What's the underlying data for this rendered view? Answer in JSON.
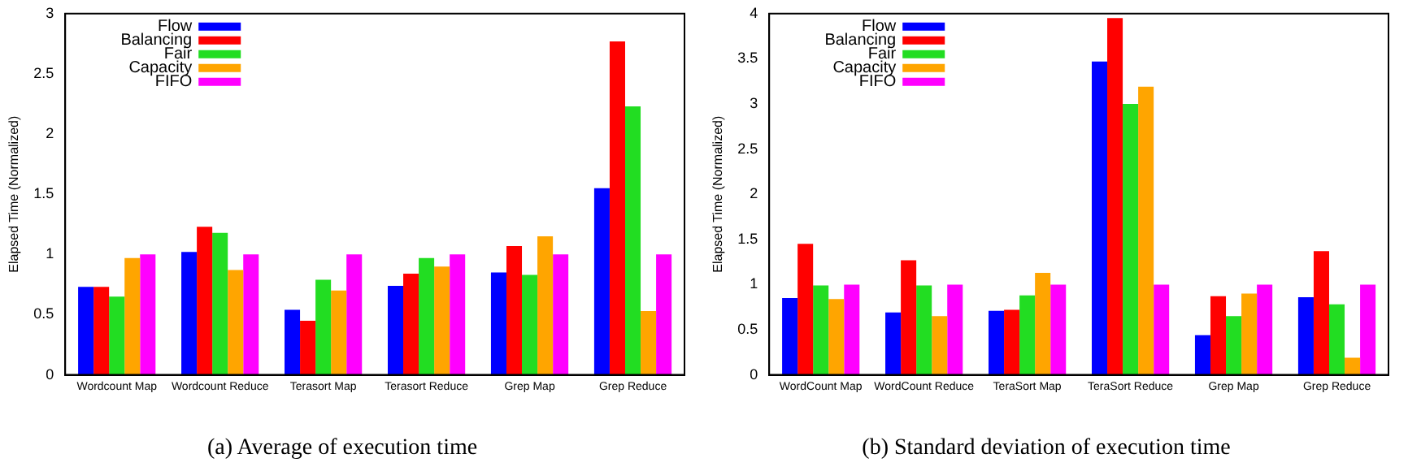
{
  "chart_data": [
    {
      "type": "bar",
      "title": "(a) Average of execution time",
      "ylabel": "Elapsed Time (Normalized)",
      "categories": [
        "Wordcount Map",
        "Wordcount Reduce",
        "Terasort Map",
        "Terasort Reduce",
        "Grep Map",
        "Grep Reduce"
      ],
      "ylim": [
        0,
        3
      ],
      "yticks": [
        0,
        0.5,
        1,
        1.5,
        2,
        2.5,
        3
      ],
      "grid": false,
      "legend": "top left",
      "series": [
        {
          "name": "Flow",
          "color": "#0000ff",
          "values": [
            0.73,
            1.02,
            0.54,
            0.74,
            0.85,
            1.55
          ]
        },
        {
          "name": "Balancing",
          "color": "#ff0000",
          "values": [
            0.73,
            1.23,
            0.45,
            0.84,
            1.07,
            2.77
          ]
        },
        {
          "name": "Fair",
          "color": "#22dd22",
          "values": [
            0.65,
            1.18,
            0.79,
            0.97,
            0.83,
            2.23
          ]
        },
        {
          "name": "Capacity",
          "color": "#ffa500",
          "values": [
            0.97,
            0.87,
            0.7,
            0.9,
            1.15,
            0.53
          ]
        },
        {
          "name": "FIFO",
          "color": "#ff00ff",
          "values": [
            1,
            1,
            1,
            1,
            1,
            1
          ]
        }
      ]
    },
    {
      "type": "bar",
      "title": "(b) Standard deviation of execution time",
      "ylabel": "Elapsed Time (Normalized)",
      "categories": [
        "WordCount Map",
        "WordCount Reduce",
        "TeraSort Map",
        "TeraSort Reduce",
        "Grep Map",
        "Grep Reduce"
      ],
      "ylim": [
        0,
        4
      ],
      "yticks": [
        0,
        0.5,
        1,
        1.5,
        2,
        2.5,
        3,
        3.5,
        4
      ],
      "grid": false,
      "legend": "top left",
      "series": [
        {
          "name": "Flow",
          "color": "#0000ff",
          "values": [
            0.85,
            0.69,
            0.71,
            3.47,
            0.44,
            0.86
          ]
        },
        {
          "name": "Balancing",
          "color": "#ff0000",
          "values": [
            1.45,
            1.27,
            0.72,
            3.95,
            0.87,
            1.37
          ]
        },
        {
          "name": "Fair",
          "color": "#22dd22",
          "values": [
            0.99,
            0.99,
            0.88,
            3.0,
            0.65,
            0.78
          ]
        },
        {
          "name": "Capacity",
          "color": "#ffa500",
          "values": [
            0.84,
            0.65,
            1.13,
            3.19,
            0.9,
            0.19
          ]
        },
        {
          "name": "FIFO",
          "color": "#ff00ff",
          "values": [
            1,
            1,
            1,
            1,
            1,
            1
          ]
        }
      ]
    }
  ]
}
